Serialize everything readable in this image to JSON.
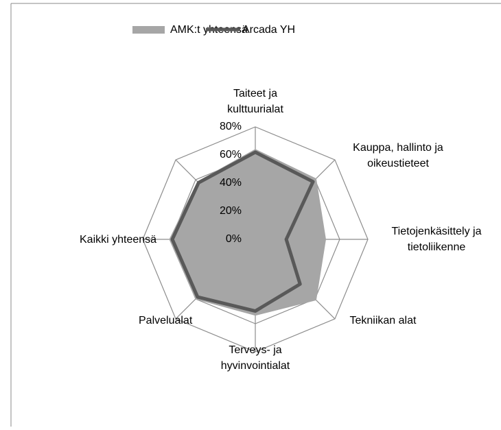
{
  "chart_data": {
    "type": "radar",
    "categories": [
      "Taiteet ja kulttuurialat",
      "Kauppa, hallinto ja oikeustieteet",
      "Tietojenkäsittely ja tietoliikenne",
      "Tekniikan alat",
      "Terveys- ja hyvinvointialat",
      "Palvelualat",
      "Kaikki yhteensä",
      null
    ],
    "series": [
      {
        "name": "AMK:t yhteensä",
        "color": "#a6a6a6",
        "values": [
          64,
          61,
          50,
          61,
          54,
          60,
          61,
          58
        ]
      },
      {
        "name": "Arcada YH",
        "color": "#595959",
        "values": [
          62,
          58,
          22,
          45,
          51,
          58,
          59,
          57
        ]
      }
    ],
    "ylim": [
      0,
      80
    ],
    "yticks": [
      {
        "value": 0,
        "label": "0%"
      },
      {
        "value": 20,
        "label": "20%"
      },
      {
        "value": 40,
        "label": "40%"
      },
      {
        "value": 60,
        "label": "60%"
      },
      {
        "value": 80,
        "label": "80%"
      }
    ],
    "grid": true,
    "legend": "top"
  }
}
